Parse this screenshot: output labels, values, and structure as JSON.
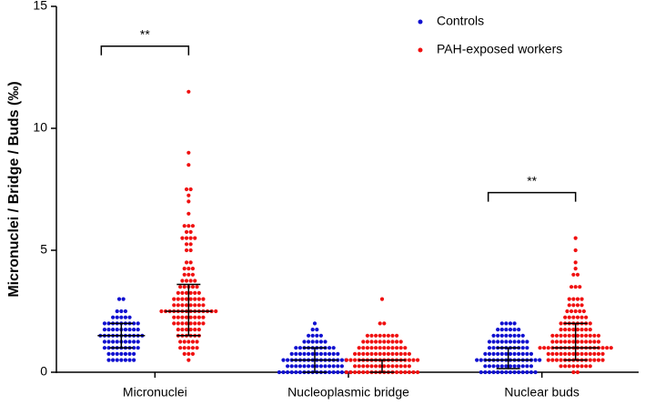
{
  "chart_data": {
    "type": "swarm",
    "y_label": "Micronuclei / Bridge / Buds (‰)",
    "categories": [
      "Micronuclei",
      "Nucleoplasmic bridge",
      "Nuclear buds"
    ],
    "ylim": [
      0,
      15
    ],
    "yticks": [
      0,
      5,
      10,
      15
    ],
    "legend": "top-right",
    "series": [
      {
        "name": "Controls",
        "color": "#1010d0",
        "median": [
          1.5,
          0.5,
          0.5
        ],
        "q1": [
          1,
          0,
          0.15
        ],
        "q3": [
          2,
          1,
          1
        ],
        "values": [
          [
            3,
            3,
            2.5,
            2.5,
            2.5,
            2.25,
            2.25,
            2.25,
            2.25,
            2.25,
            2,
            2,
            2,
            2,
            2,
            2,
            2,
            2,
            2,
            1.75,
            1.75,
            1.75,
            1.75,
            1.75,
            1.75,
            1.75,
            1.75,
            1.75,
            1.5,
            1.5,
            1.5,
            1.5,
            1.5,
            1.5,
            1.5,
            1.5,
            1.5,
            1.5,
            1.5,
            1.25,
            1.25,
            1.25,
            1.25,
            1.25,
            1.25,
            1.25,
            1.25,
            1.25,
            1,
            1,
            1,
            1,
            1,
            1,
            1,
            1,
            1,
            0.75,
            0.75,
            0.75,
            0.75,
            0.75,
            0.75,
            0.75,
            0.5,
            0.5,
            0.5,
            0.5,
            0.5,
            0.5,
            0.5
          ],
          [
            2,
            1.75,
            1.75,
            1.5,
            1.5,
            1.5,
            1.5,
            1.25,
            1.25,
            1.25,
            1.25,
            1.25,
            1.25,
            1,
            1,
            1,
            1,
            1,
            1,
            1,
            1,
            1,
            1,
            0.75,
            0.75,
            0.75,
            0.75,
            0.75,
            0.75,
            0.75,
            0.75,
            0.75,
            0.75,
            0.75,
            0.75,
            0.5,
            0.5,
            0.5,
            0.5,
            0.5,
            0.5,
            0.5,
            0.5,
            0.5,
            0.5,
            0.5,
            0.5,
            0.5,
            0.5,
            0.5,
            0.5,
            0.25,
            0.25,
            0.25,
            0.25,
            0.25,
            0.25,
            0.25,
            0.25,
            0.25,
            0.25,
            0.25,
            0.25,
            0.25,
            0.25,
            0,
            0,
            0,
            0,
            0,
            0,
            0,
            0,
            0,
            0,
            0,
            0,
            0,
            0,
            0,
            0,
            0,
            0
          ],
          [
            2,
            2,
            2,
            2,
            1.75,
            1.75,
            1.75,
            1.75,
            1.75,
            1.75,
            1.5,
            1.5,
            1.5,
            1.5,
            1.5,
            1.5,
            1.5,
            1.5,
            1.25,
            1.25,
            1.25,
            1.25,
            1.25,
            1.25,
            1.25,
            1.25,
            1.25,
            1.25,
            1,
            1,
            1,
            1,
            1,
            1,
            1,
            1,
            1,
            1,
            0.75,
            0.75,
            0.75,
            0.75,
            0.75,
            0.75,
            0.75,
            0.75,
            0.75,
            0.75,
            0.75,
            0.75,
            0.5,
            0.5,
            0.5,
            0.5,
            0.5,
            0.5,
            0.5,
            0.5,
            0.5,
            0.5,
            0.5,
            0.5,
            0.5,
            0.5,
            0.5,
            0.5,
            0.25,
            0.25,
            0.25,
            0.25,
            0.25,
            0.25,
            0.25,
            0.25,
            0.25,
            0.25,
            0.25,
            0.25,
            0,
            0,
            0,
            0,
            0,
            0,
            0,
            0,
            0,
            0,
            0,
            0,
            0,
            0
          ]
        ]
      },
      {
        "name": "PAH-exposed workers",
        "color": "#f01010",
        "median": [
          2.5,
          0.5,
          1
        ],
        "q1": [
          1.5,
          0,
          0.5
        ],
        "q3": [
          3.6,
          0.5,
          2
        ],
        "values": [
          [
            11.5,
            9,
            8.5,
            7.5,
            7.5,
            7.25,
            7,
            6.5,
            6,
            6,
            6,
            5.75,
            5.75,
            5.5,
            5.5,
            5.5,
            5.5,
            5.25,
            5.25,
            5,
            5,
            4.5,
            4.5,
            4.25,
            4.25,
            4.25,
            4,
            4,
            4,
            3.75,
            3.75,
            3.75,
            3.75,
            3.5,
            3.5,
            3.5,
            3.5,
            3.5,
            3.25,
            3.25,
            3.25,
            3.25,
            3.25,
            3.25,
            3,
            3,
            3,
            3,
            3,
            3,
            3,
            3,
            2.75,
            2.75,
            2.75,
            2.75,
            2.75,
            2.75,
            2.75,
            2.75,
            2.5,
            2.5,
            2.5,
            2.5,
            2.5,
            2.5,
            2.5,
            2.5,
            2.5,
            2.5,
            2.5,
            2.5,
            2.5,
            2.5,
            2.25,
            2.25,
            2.25,
            2.25,
            2.25,
            2.25,
            2.25,
            2.25,
            2,
            2,
            2,
            2,
            2,
            2,
            2,
            2,
            1.75,
            1.75,
            1.75,
            1.75,
            1.75,
            1.75,
            1.5,
            1.5,
            1.5,
            1.5,
            1.5,
            1.5,
            1.25,
            1.25,
            1.25,
            1.25,
            1.25,
            1,
            1,
            1,
            1,
            1,
            0.75,
            0.75,
            0.75,
            0.5
          ],
          [
            3,
            2,
            2,
            1.5,
            1.5,
            1.5,
            1.5,
            1.5,
            1.5,
            1.5,
            1.5,
            1.25,
            1.25,
            1.25,
            1.25,
            1.25,
            1.25,
            1.25,
            1.25,
            1.25,
            1.25,
            1,
            1,
            1,
            1,
            1,
            1,
            1,
            1,
            1,
            1,
            1,
            1,
            0.75,
            0.75,
            0.75,
            0.75,
            0.75,
            0.75,
            0.75,
            0.75,
            0.75,
            0.75,
            0.75,
            0.75,
            0.75,
            0.75,
            0.5,
            0.5,
            0.5,
            0.5,
            0.5,
            0.5,
            0.5,
            0.5,
            0.5,
            0.5,
            0.5,
            0.5,
            0.5,
            0.5,
            0.5,
            0.5,
            0.5,
            0.5,
            0.25,
            0.25,
            0.25,
            0.25,
            0.25,
            0.25,
            0.25,
            0.25,
            0.25,
            0.25,
            0.25,
            0.25,
            0.25,
            0.25,
            0,
            0,
            0,
            0,
            0,
            0,
            0,
            0,
            0,
            0,
            0,
            0,
            0,
            0,
            0,
            0,
            0,
            0
          ],
          [
            5.5,
            5,
            4.5,
            4.25,
            4,
            4,
            3.5,
            3.5,
            3.5,
            3,
            3,
            3,
            3,
            2.75,
            2.75,
            2.75,
            2.75,
            2.5,
            2.5,
            2.5,
            2.5,
            2.5,
            2.25,
            2.25,
            2.25,
            2.25,
            2.25,
            2.25,
            2,
            2,
            2,
            2,
            2,
            2,
            2,
            2,
            1.75,
            1.75,
            1.75,
            1.75,
            1.75,
            1.75,
            1.75,
            1.75,
            1.5,
            1.5,
            1.5,
            1.5,
            1.5,
            1.5,
            1.5,
            1.5,
            1.5,
            1.5,
            1.5,
            1.5,
            1.25,
            1.25,
            1.25,
            1.25,
            1.25,
            1.25,
            1.25,
            1.25,
            1.25,
            1.25,
            1.25,
            1.25,
            1,
            1,
            1,
            1,
            1,
            1,
            1,
            1,
            1,
            1,
            1,
            1,
            1,
            1,
            1,
            1,
            1,
            1,
            0.75,
            0.75,
            0.75,
            0.75,
            0.75,
            0.75,
            0.75,
            0.75,
            0.75,
            0.75,
            0.75,
            0.75,
            0.75,
            0.75,
            0.5,
            0.5,
            0.5,
            0.5,
            0.5,
            0.5,
            0.5,
            0.5,
            0.5,
            0.5,
            0.5,
            0.5,
            0.5,
            0.5,
            0.25,
            0.25,
            0.25,
            0.25,
            0.25,
            0.25,
            0.25,
            0.25,
            0,
            0
          ]
        ]
      }
    ],
    "annotations": [
      {
        "text": "**",
        "category": 0
      },
      {
        "text": "**",
        "category": 2
      }
    ]
  }
}
